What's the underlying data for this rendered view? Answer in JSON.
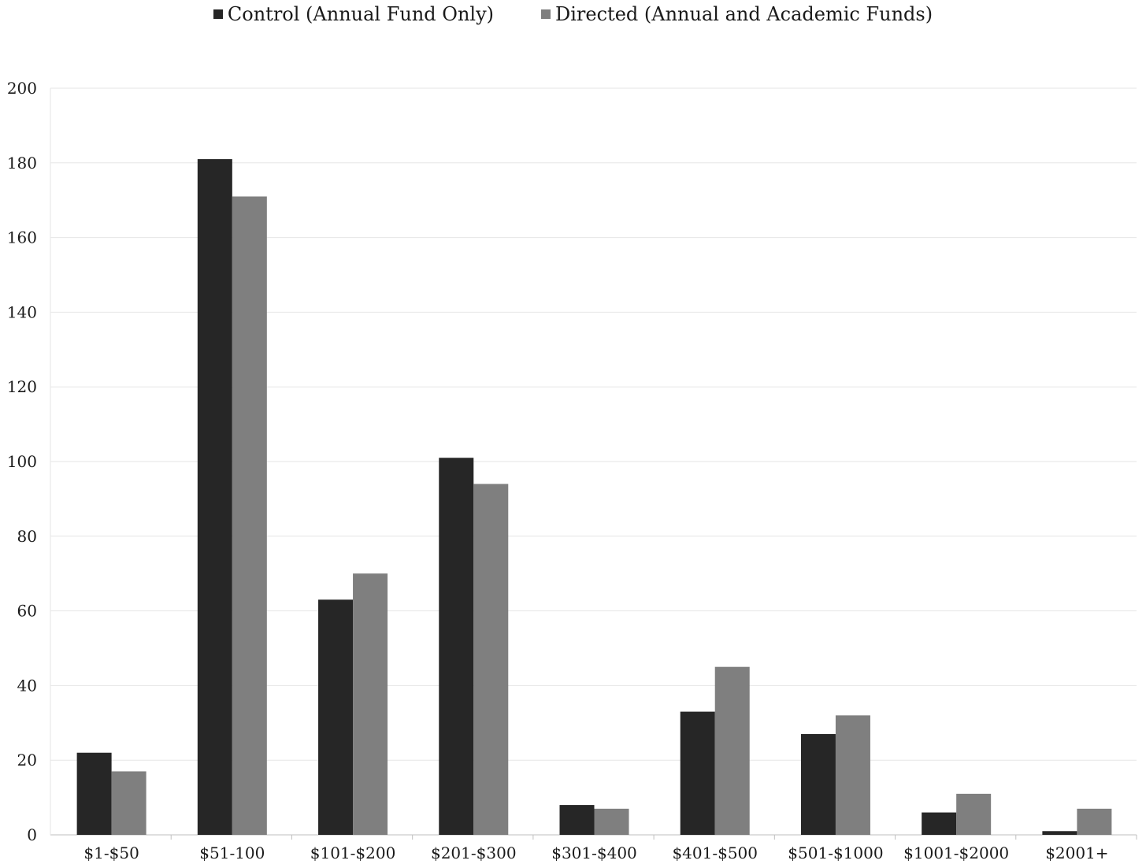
{
  "colors": {
    "control": "#262626",
    "directed": "#7f7f7f",
    "grid": "#e6e6e6",
    "axis": "#bfbfbf"
  },
  "chart_data": {
    "type": "bar",
    "categories": [
      "$1-$50",
      "$51-100",
      "$101-$200",
      "$201-$300",
      "$301-$400",
      "$401-$500",
      "$501-$1000",
      "$1001-$2000",
      "$2001+"
    ],
    "series": [
      {
        "name": "Control (Annual Fund Only)",
        "values": [
          22,
          181,
          63,
          101,
          8,
          33,
          27,
          6,
          1
        ]
      },
      {
        "name": "Directed (Annual and Academic Funds)",
        "values": [
          17,
          171,
          70,
          94,
          7,
          45,
          32,
          11,
          7
        ]
      }
    ],
    "ylim": [
      0,
      200
    ],
    "yticks": [
      0,
      20,
      40,
      60,
      80,
      100,
      120,
      140,
      160,
      180,
      200
    ],
    "grid": true,
    "legend": "top-center",
    "title": "",
    "xlabel": "",
    "ylabel": ""
  }
}
